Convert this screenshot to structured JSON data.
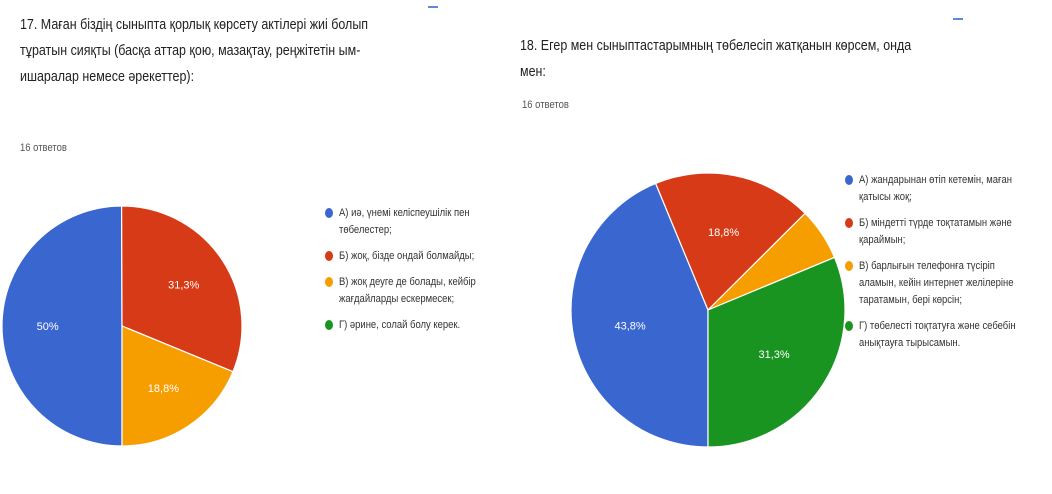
{
  "colors": {
    "blue": "#3a66cf",
    "red": "#d63a16",
    "orange": "#f69d00",
    "green": "#1a9420"
  },
  "chart_data": [
    {
      "type": "pie",
      "title": "17. Маған біздің сыныпта қорлық көрсету актілері жиі болып тұратын сияқты (басқа аттар қою, мазақтау, реңжітетін ым-ишаралар немесе әрекеттер):",
      "responses": "16 ответов",
      "slices": [
        {
          "label": "А) иә, үнемі келіспеушілік пен төбелестер;",
          "value": 50,
          "pct_label": "50%",
          "color": "#3a66cf"
        },
        {
          "label": "Б) жоқ, бізде ондай болмайды;",
          "value": 31.3,
          "pct_label": "31,3%",
          "color": "#d63a16"
        },
        {
          "label": "В) жоқ деуге де болады, кейбір жағдайларды ескермесек;",
          "value": 18.8,
          "pct_label": "18,8%",
          "color": "#f69d00"
        },
        {
          "label": "Г) әрине, солай болу керек.",
          "value": 0,
          "pct_label": "",
          "color": "#1a9420"
        }
      ]
    },
    {
      "type": "pie",
      "title": "18. Егер мен сыныптастарымның төбелесіп жатқанын көрсем, онда мен:",
      "responses": "16 ответов",
      "slices": [
        {
          "label": "А) жандарынан өтіп кетемін, маған қатысы жоқ;",
          "value": 43.8,
          "pct_label": "43,8%",
          "color": "#3a66cf"
        },
        {
          "label": "Б) міндетті түрде тоқтатамын және қараймын;",
          "value": 18.8,
          "pct_label": "18,8%",
          "color": "#d63a16"
        },
        {
          "label": "В) барлығын телефонға түсіріп аламын, кейін интернет желілеріне таратамын, бері көрсін;",
          "value": 6.2,
          "pct_label": "",
          "color": "#f69d00"
        },
        {
          "label": "Г) төбелесті тоқтатуға және себебін анықтауға тырысамын.",
          "value": 31.3,
          "pct_label": "31,3%",
          "color": "#1a9420"
        }
      ]
    }
  ]
}
